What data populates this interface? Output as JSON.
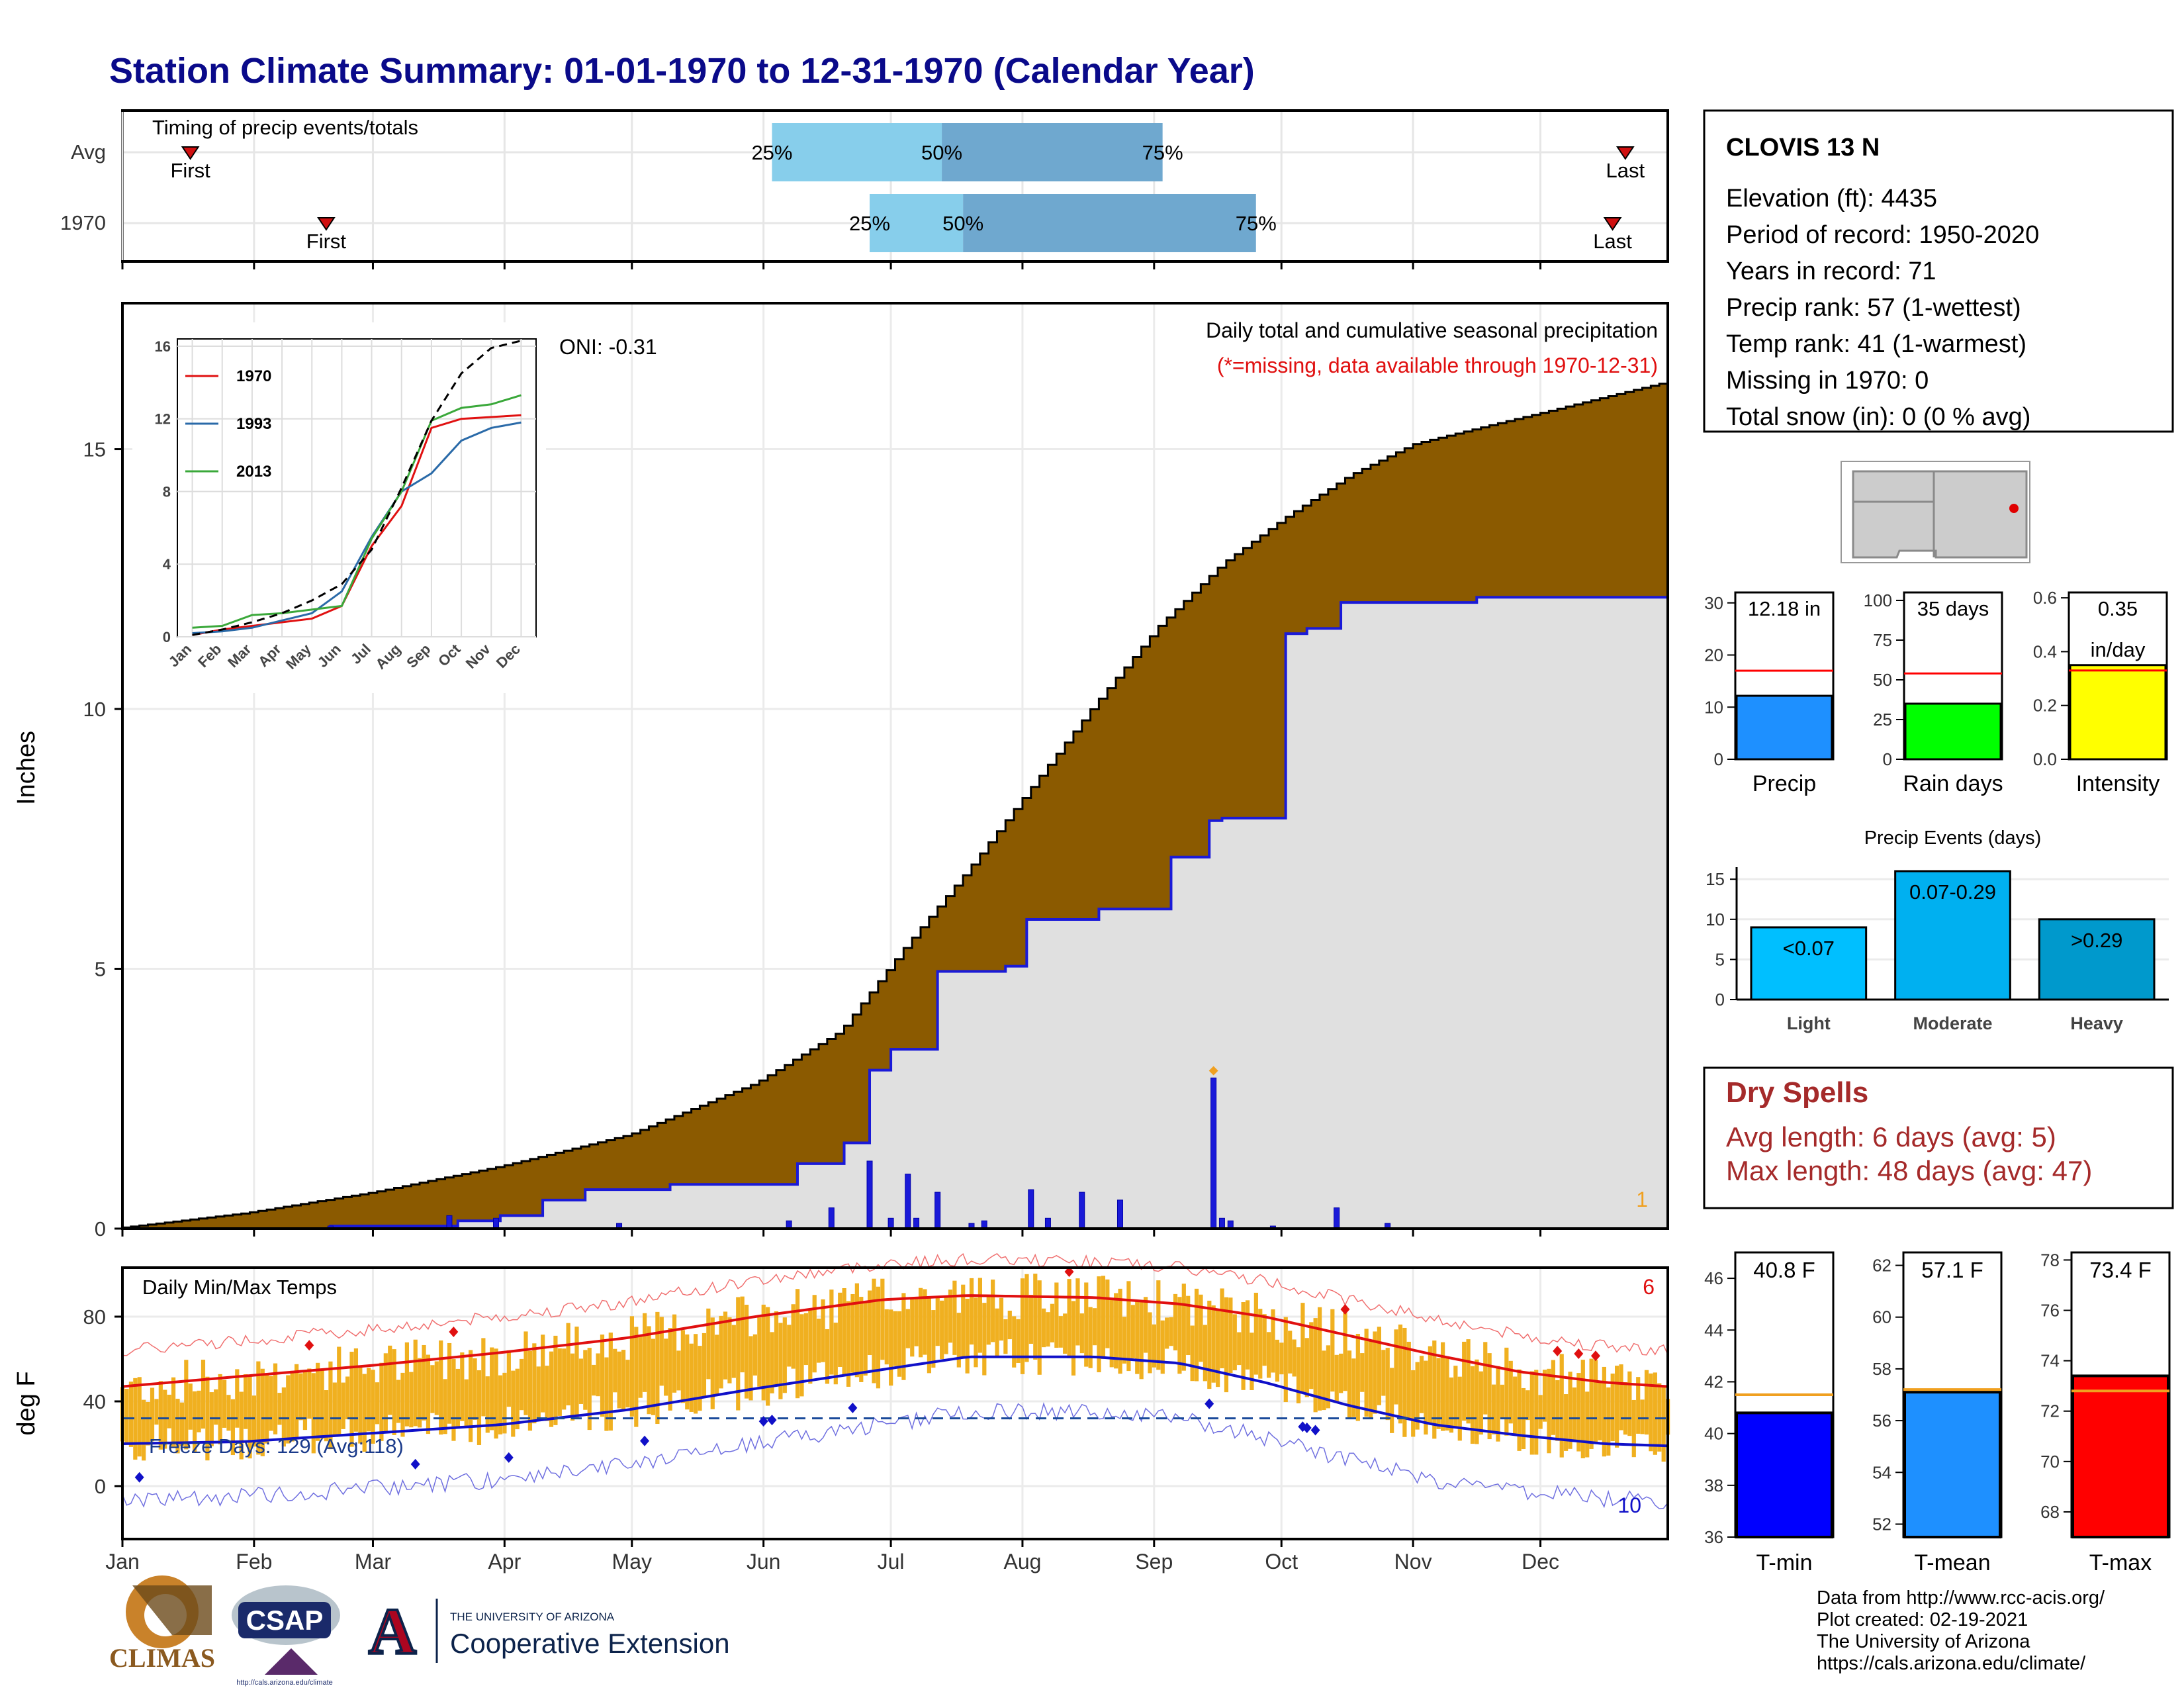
{
  "page": {
    "title": "Station Climate Summary: 01-01-1970 to 12-31-1970 (Calendar Year)",
    "colors": {
      "title": "#0a0a8a",
      "precip_cum_avg": "#8b5a00",
      "precip_cum_year": "#e0e0e0",
      "year_line": "#1a1ad8",
      "tmax": "#e01010",
      "tmin": "#1010c8",
      "range_bar": "#f0b020",
      "dry_spell": "#a52a2a"
    }
  },
  "timing_panel": {
    "title": "Timing of precip events/totals",
    "row_labels": [
      "Avg",
      "1970"
    ],
    "first_label": "First",
    "last_label": "Last",
    "pct_labels": [
      "25%",
      "50%",
      "75%"
    ]
  },
  "precip_panel": {
    "ylabel": "Inches",
    "yticks": [
      "0",
      "5",
      "10",
      "15"
    ],
    "caption": "Daily total and cumulative seasonal precipitation",
    "missing_note": "(*=missing, data available through 1970-12-31)",
    "oni": "ONI: -0.31",
    "corner_count": "1",
    "inset": {
      "yticks": [
        "0",
        "4",
        "8",
        "12",
        "16"
      ],
      "months": [
        "Jan",
        "Feb",
        "Mar",
        "Apr",
        "May",
        "Jun",
        "Jul",
        "Aug",
        "Sep",
        "Oct",
        "Nov",
        "Dec"
      ],
      "legend": [
        "1970",
        "1993",
        "2013"
      ]
    }
  },
  "temp_panel": {
    "ylabel": "deg F",
    "yticks": [
      "0",
      "40",
      "80"
    ],
    "title": "Daily Min/Max Temps",
    "freeze": "Freeze Days: 129 (Avg:118)",
    "top_count": "6",
    "bottom_count": "10"
  },
  "months": [
    "Jan",
    "Feb",
    "Mar",
    "Apr",
    "May",
    "Jun",
    "Jul",
    "Aug",
    "Sep",
    "Oct",
    "Nov",
    "Dec"
  ],
  "station": {
    "name": "CLOVIS 13 N",
    "lines": [
      "Elevation (ft): 4435",
      "Period of record: 1950-2020",
      "Years in record: 71",
      "Precip rank: 57 (1-wettest)",
      "Temp rank: 41 (1-warmest)",
      "Missing in 1970: 0",
      "Total snow (in): 0 (0 % avg)"
    ]
  },
  "mini_bars": {
    "precip": {
      "label": "Precip",
      "value_label": "12.18 in",
      "yticks": [
        "0",
        "10",
        "20",
        "30"
      ]
    },
    "rain_days": {
      "label": "Rain days",
      "value_label": "35 days",
      "yticks": [
        "0",
        "25",
        "50",
        "75",
        "100"
      ]
    },
    "intensity": {
      "label": "Intensity",
      "value_label": "0.35",
      "value_label2": "in/day",
      "yticks": [
        "0.0",
        "0.2",
        "0.4",
        "0.6"
      ]
    }
  },
  "precip_events": {
    "title": "Precip Events (days)",
    "yticks": [
      "0",
      "5",
      "10",
      "15"
    ],
    "categories": [
      "Light",
      "Moderate",
      "Heavy"
    ],
    "bar_labels": [
      "<0.07",
      "0.07-0.29",
      ">0.29"
    ]
  },
  "dry_spells": {
    "title": "Dry Spells",
    "avg": "Avg length: 6 days (avg: 5)",
    "max": "Max length: 48 days (avg: 47)"
  },
  "temp_bars": {
    "tmin": {
      "label": "T-min",
      "value_label": "40.8 F",
      "yticks": [
        "36",
        "38",
        "40",
        "42",
        "44",
        "46"
      ]
    },
    "tmean": {
      "label": "T-mean",
      "value_label": "57.1 F",
      "yticks": [
        "52",
        "54",
        "56",
        "58",
        "60",
        "62"
      ]
    },
    "tmax": {
      "label": "T-max",
      "value_label": "73.4 F",
      "yticks": [
        "68",
        "70",
        "72",
        "74",
        "76",
        "78"
      ]
    }
  },
  "footer": {
    "lines": [
      "Data from http://www.rcc-acis.org/",
      "Plot created: 02-19-2021",
      "The University of Arizona",
      "https://cals.arizona.edu/climate/"
    ],
    "logo_climas": "CLIMAS",
    "logo_csap": "CSAP",
    "logo_csap_url": "http://cals.arizona.edu/climate",
    "logo_ua_top": "THE UNIVERSITY OF ARIZONA",
    "logo_ua_bottom": "Cooperative Extension",
    "logo_ua_letter": "A"
  },
  "chart_data": [
    {
      "type": "bar",
      "name": "timing",
      "rows": [
        {
          "label": "Avg",
          "first_doy": 17,
          "p25_doy": 154,
          "p50_doy": 194,
          "p75_doy": 246,
          "last_doy": 355
        },
        {
          "label": "1970",
          "first_doy": 49,
          "p25_doy": 177,
          "p50_doy": 199,
          "p75_doy": 268,
          "last_doy": 352
        }
      ]
    },
    {
      "type": "area",
      "name": "cumulative_precip",
      "ylim": [
        0,
        16
      ],
      "avg_cumulative": {
        "x_doy": [
          1,
          30,
          60,
          90,
          120,
          150,
          170,
          185,
          200,
          215,
          230,
          245,
          260,
          275,
          290,
          305,
          320,
          335,
          350,
          365
        ],
        "y": [
          0.02,
          0.3,
          0.7,
          1.2,
          1.8,
          2.8,
          3.8,
          5.4,
          6.9,
          8.5,
          10.1,
          11.6,
          12.8,
          13.7,
          14.5,
          15.1,
          15.4,
          15.7,
          16.0,
          16.3
        ]
      },
      "year_cumulative": {
        "x_doy": [
          1,
          50,
          73,
          80,
          90,
          100,
          110,
          120,
          130,
          140,
          150,
          160,
          171,
          177,
          182,
          193,
          205,
          209,
          214,
          231,
          248,
          257,
          260,
          275,
          280,
          288,
          320,
          365
        ],
        "y": [
          0.0,
          0.05,
          0.05,
          0.15,
          0.25,
          0.55,
          0.75,
          0.75,
          0.85,
          0.85,
          0.85,
          1.25,
          1.65,
          3.05,
          3.45,
          4.95,
          4.95,
          5.05,
          5.95,
          6.15,
          7.15,
          7.85,
          7.9,
          11.45,
          11.55,
          12.05,
          12.15,
          12.18
        ]
      },
      "daily_precip": {
        "x_doy": [
          50,
          78,
          89,
          118,
          158,
          168,
          177,
          182,
          186,
          188,
          193,
          201,
          204,
          215,
          219,
          227,
          236,
          258,
          260,
          262,
          272,
          287,
          299
        ],
        "y": [
          0.05,
          0.25,
          0.2,
          0.1,
          0.15,
          0.4,
          1.3,
          0.2,
          1.05,
          0.2,
          0.7,
          0.1,
          0.15,
          0.75,
          0.2,
          0.7,
          0.55,
          2.9,
          0.2,
          0.15,
          0.05,
          0.4,
          0.1
        ]
      },
      "ylabel": "Inches"
    },
    {
      "type": "line",
      "name": "inset_cumulative",
      "categories": [
        "Jan",
        "Feb",
        "Mar",
        "Apr",
        "May",
        "Jun",
        "Jul",
        "Aug",
        "Sep",
        "Oct",
        "Nov",
        "Dec"
      ],
      "ylim": [
        0,
        16
      ],
      "series": [
        {
          "name": "1970",
          "values": [
            0.1,
            0.4,
            0.6,
            0.8,
            1.0,
            1.7,
            5.0,
            7.2,
            11.5,
            12.0,
            12.1,
            12.2
          ]
        },
        {
          "name": "1993",
          "values": [
            0.2,
            0.3,
            0.5,
            0.9,
            1.3,
            2.5,
            5.5,
            8.0,
            9.0,
            10.8,
            11.5,
            11.8
          ]
        },
        {
          "name": "2013",
          "values": [
            0.5,
            0.6,
            1.2,
            1.3,
            1.5,
            1.7,
            5.4,
            8.0,
            11.9,
            12.6,
            12.8,
            13.3
          ]
        },
        {
          "name": "",
          "values": [
            0.1,
            0.4,
            0.8,
            1.3,
            2.0,
            2.9,
            4.8,
            8.2,
            11.9,
            14.5,
            15.9,
            16.3
          ]
        }
      ]
    },
    {
      "type": "line",
      "name": "daily_temps",
      "ylim": [
        -25,
        100
      ],
      "normal_max": {
        "x_doy": [
          1,
          30,
          60,
          90,
          120,
          150,
          180,
          200,
          230,
          250,
          270,
          290,
          310,
          330,
          350,
          365
        ],
        "y": [
          47,
          52,
          57,
          63,
          70,
          80,
          88,
          90,
          89,
          86,
          80,
          71,
          62,
          54,
          49,
          47
        ]
      },
      "normal_min": {
        "x_doy": [
          1,
          30,
          60,
          90,
          120,
          150,
          180,
          200,
          230,
          250,
          270,
          290,
          310,
          330,
          350,
          365
        ],
        "y": [
          20,
          21,
          25,
          29,
          36,
          46,
          55,
          61,
          61,
          58,
          49,
          38,
          29,
          24,
          20,
          19
        ]
      },
      "record_highs_count": 6,
      "record_lows_count": 10,
      "freeze_line": 32
    },
    {
      "type": "bar",
      "name": "summary_bars",
      "categories": [
        "Precip",
        "Rain days",
        "Intensity"
      ],
      "values": [
        12.18,
        35,
        0.35
      ],
      "averages": [
        17,
        54,
        0.33
      ],
      "ylims": [
        [
          0,
          32
        ],
        [
          0,
          105
        ],
        [
          0,
          0.62
        ]
      ]
    },
    {
      "type": "bar",
      "name": "precip_events",
      "categories": [
        "Light",
        "Moderate",
        "Heavy"
      ],
      "values": [
        9,
        16,
        10
      ],
      "ylim": [
        0,
        16.5
      ]
    },
    {
      "type": "bar",
      "name": "temp_bars",
      "categories": [
        "T-min",
        "T-mean",
        "T-max"
      ],
      "values": [
        40.8,
        57.1,
        73.4
      ],
      "averages": [
        41.5,
        57.2,
        72.8
      ],
      "ylims": [
        [
          36,
          47
        ],
        [
          51.5,
          62.5
        ],
        [
          67,
          78.3
        ]
      ]
    }
  ]
}
